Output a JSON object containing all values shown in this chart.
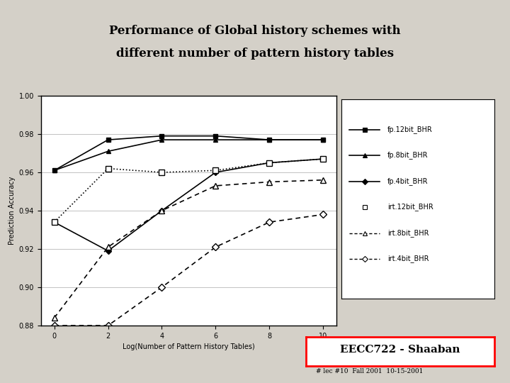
{
  "title_line1": "Performance of Global history schemes with",
  "title_line2": "different number of pattern history tables",
  "xlabel": "Log(Number of Pattern History Tables)",
  "ylabel": "Prediction Accuracy",
  "x": [
    0,
    2,
    4,
    6,
    8,
    10
  ],
  "fp_12bit": [
    0.961,
    0.977,
    0.979,
    0.979,
    0.977,
    0.977
  ],
  "fp_8bit": [
    0.961,
    0.971,
    0.977,
    0.977,
    0.977,
    0.977
  ],
  "fp_4bit": [
    0.934,
    0.919,
    0.94,
    0.96,
    0.965,
    0.967
  ],
  "irt_12bit": [
    0.934,
    0.962,
    0.96,
    0.961,
    0.965,
    0.967
  ],
  "irt_8bit": [
    0.884,
    0.921,
    0.94,
    0.953,
    0.955,
    0.956
  ],
  "irt_4bit": [
    0.88,
    0.88,
    0.9,
    0.921,
    0.934,
    0.938
  ],
  "ylim": [
    0.88,
    1.0
  ],
  "yticks": [
    0.88,
    0.9,
    0.92,
    0.94,
    0.96,
    0.98,
    1.0
  ],
  "xticks": [
    0,
    2,
    4,
    6,
    8,
    10
  ],
  "slide_bg": "#d4d0c8",
  "plot_bg": "#ffffff",
  "eecc_text": "EECC722 - Shaaban",
  "bottom_text": "# lec #10  Fall 2001  10-15-2001"
}
